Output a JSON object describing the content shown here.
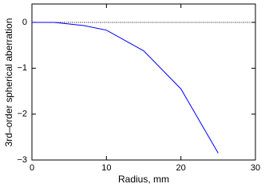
{
  "chart_data": {
    "type": "line",
    "xlabel": "Radius, mm",
    "ylabel": "3rd–order spherical aberration",
    "x": [
      0,
      3,
      7,
      10,
      15,
      20,
      25
    ],
    "series": [
      {
        "color": "#0000ff",
        "values": [
          0,
          0,
          -0.07,
          -0.17,
          -0.62,
          -1.45,
          -2.85
        ]
      }
    ],
    "xlim": [
      0,
      30
    ],
    "xticks": [
      0,
      10,
      20,
      30
    ],
    "ylim": [
      -3,
      0.4
    ],
    "yticks": [
      {
        "value": -3,
        "label": "−3"
      },
      {
        "value": -2,
        "label": "−2"
      },
      {
        "value": -1,
        "label": "−1"
      },
      0
    ],
    "hline": 0
  }
}
